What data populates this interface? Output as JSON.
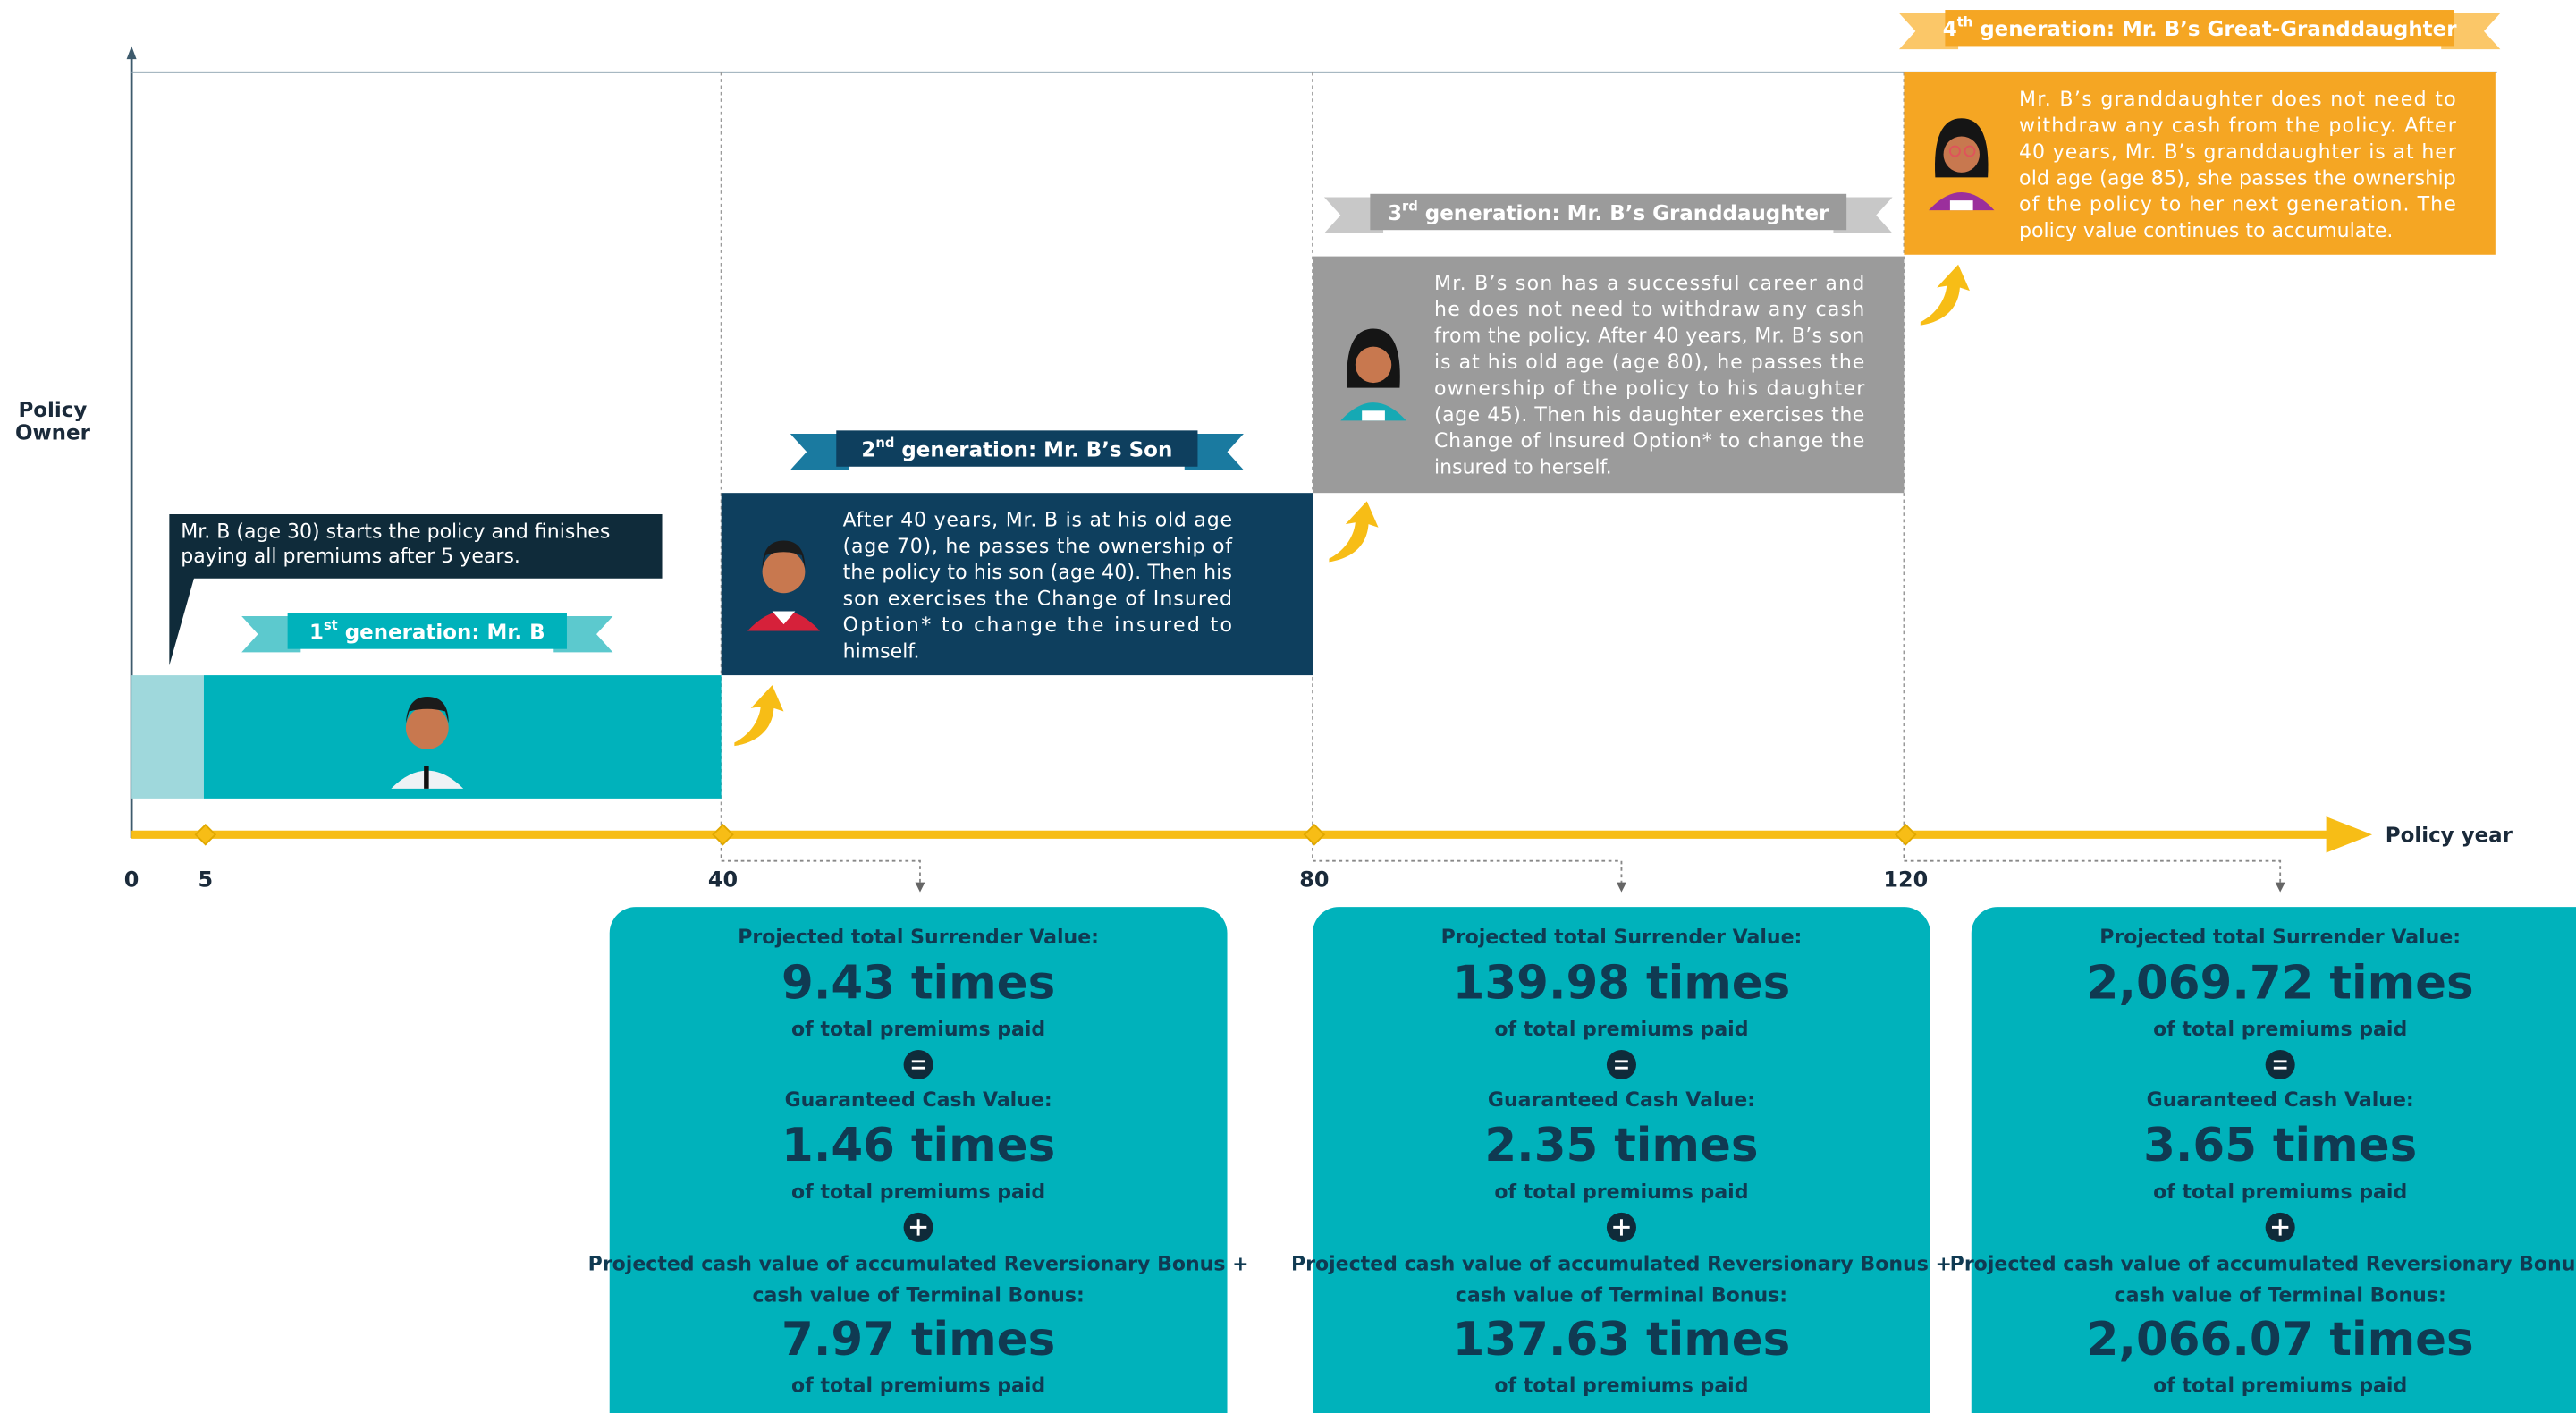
{
  "axis": {
    "y_label": [
      "Policy",
      "Owner"
    ],
    "x_label": "Policy year",
    "ticks": [
      0,
      5,
      40,
      80,
      120
    ]
  },
  "intro_callout": [
    "Mr. B (age 30) starts the policy and finishes",
    "paying all premiums after 5 years."
  ],
  "generations": [
    {
      "ordinal": "1",
      "suffix": "st",
      "title": " generation: Mr. B"
    },
    {
      "ordinal": "2",
      "suffix": "nd",
      "title": " generation: Mr. B’s Son",
      "text": [
        "After 40 years, Mr. B is at his old age",
        "(age 70), he passes the ownership of",
        "the policy to his son (age 40). Then his",
        "son exercises the Change of Insured",
        "Option* to change the insured to",
        "himself."
      ]
    },
    {
      "ordinal": "3",
      "suffix": "rd",
      "title": " generation: Mr. B’s Granddaughter",
      "text": [
        "Mr. B’s son has a successful career and",
        "he does not need to withdraw any cash",
        "from the policy. After 40 years, Mr. B’s son",
        "is at his old age (age 80), he passes the",
        "ownership of the policy to his daughter",
        "(age 45). Then his daughter exercises the",
        "Change of Insured Option* to change the",
        "insured to herself."
      ]
    },
    {
      "ordinal": "4",
      "suffix": "th",
      "title": " generation: Mr. B’s Great-Granddaughter",
      "text": [
        "Mr. B’s granddaughter does not need to",
        "withdraw any cash from the policy. After",
        "40 years, Mr. B’s granddaughter is at her",
        "old age (age 85), she passes the ownership",
        "of the policy to her next generation. The",
        "policy value continues to accumulate."
      ]
    }
  ],
  "labels": {
    "surrender": "Projected total Surrender Value:",
    "guaranteed": "Guaranteed Cash Value:",
    "bonus": [
      "Projected cash value of accumulated Reversionary Bonus +",
      "cash value of Terminal Bonus:"
    ],
    "unit": "of total premiums paid"
  },
  "projections": [
    {
      "surrender": "9.43 times",
      "guaranteed": "1.46 times",
      "bonus": "7.97 times"
    },
    {
      "surrender": "139.98 times",
      "guaranteed": "2.35 times",
      "bonus": "137.63 times"
    },
    {
      "surrender": "2,069.72 times",
      "guaranteed": "3.65 times",
      "bonus": "2,066.07 times"
    }
  ]
}
